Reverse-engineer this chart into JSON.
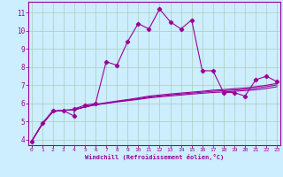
{
  "xlabel": "Windchill (Refroidissement éolien,°C)",
  "bg_color": "#cceeff",
  "grid_color": "#aaccbb",
  "line_color": "#990099",
  "x_ticks": [
    0,
    1,
    2,
    3,
    4,
    5,
    6,
    7,
    8,
    9,
    10,
    11,
    12,
    13,
    14,
    15,
    16,
    17,
    18,
    19,
    20,
    21,
    22,
    23
  ],
  "y_ticks": [
    4,
    5,
    6,
    7,
    8,
    9,
    10,
    11
  ],
  "ylim": [
    3.7,
    11.6
  ],
  "xlim": [
    -0.3,
    23.3
  ],
  "series1_x": [
    0,
    1,
    2,
    3,
    4,
    4,
    5,
    6,
    7,
    8,
    9,
    10,
    11,
    12,
    13,
    14,
    15,
    16,
    17,
    18,
    19,
    20,
    21,
    22,
    23
  ],
  "series1_y": [
    3.9,
    4.9,
    5.6,
    5.6,
    5.3,
    5.7,
    5.9,
    6.0,
    8.3,
    8.1,
    9.4,
    10.4,
    10.1,
    11.2,
    10.5,
    10.1,
    10.6,
    7.8,
    7.8,
    6.6,
    6.6,
    6.4,
    7.3,
    7.5,
    7.2
  ],
  "series2_x": [
    0,
    1,
    2,
    3,
    4,
    5,
    6,
    7,
    8,
    9,
    10,
    11,
    12,
    13,
    14,
    15,
    16,
    17,
    18,
    19,
    20,
    21,
    22,
    23
  ],
  "series2_y": [
    3.9,
    4.85,
    5.55,
    5.62,
    5.65,
    5.8,
    5.92,
    6.0,
    6.08,
    6.15,
    6.22,
    6.3,
    6.36,
    6.41,
    6.46,
    6.51,
    6.56,
    6.6,
    6.63,
    6.67,
    6.71,
    6.75,
    6.82,
    6.92
  ],
  "series3_x": [
    0,
    1,
    2,
    3,
    4,
    5,
    6,
    7,
    8,
    9,
    10,
    11,
    12,
    13,
    14,
    15,
    16,
    17,
    18,
    19,
    20,
    21,
    22,
    23
  ],
  "series3_y": [
    3.9,
    4.85,
    5.55,
    5.62,
    5.65,
    5.8,
    5.93,
    6.01,
    6.1,
    6.18,
    6.26,
    6.35,
    6.41,
    6.47,
    6.52,
    6.57,
    6.62,
    6.67,
    6.7,
    6.74,
    6.78,
    6.84,
    6.92,
    7.02
  ],
  "series4_x": [
    0,
    1,
    2,
    3,
    4,
    5,
    6,
    7,
    8,
    9,
    10,
    11,
    12,
    13,
    14,
    15,
    16,
    17,
    18,
    19,
    20,
    21,
    22,
    23
  ],
  "series4_y": [
    3.9,
    4.85,
    5.55,
    5.62,
    5.65,
    5.82,
    5.95,
    6.04,
    6.13,
    6.21,
    6.3,
    6.4,
    6.46,
    6.52,
    6.57,
    6.62,
    6.67,
    6.73,
    6.76,
    6.81,
    6.85,
    6.92,
    7.0,
    7.1
  ]
}
